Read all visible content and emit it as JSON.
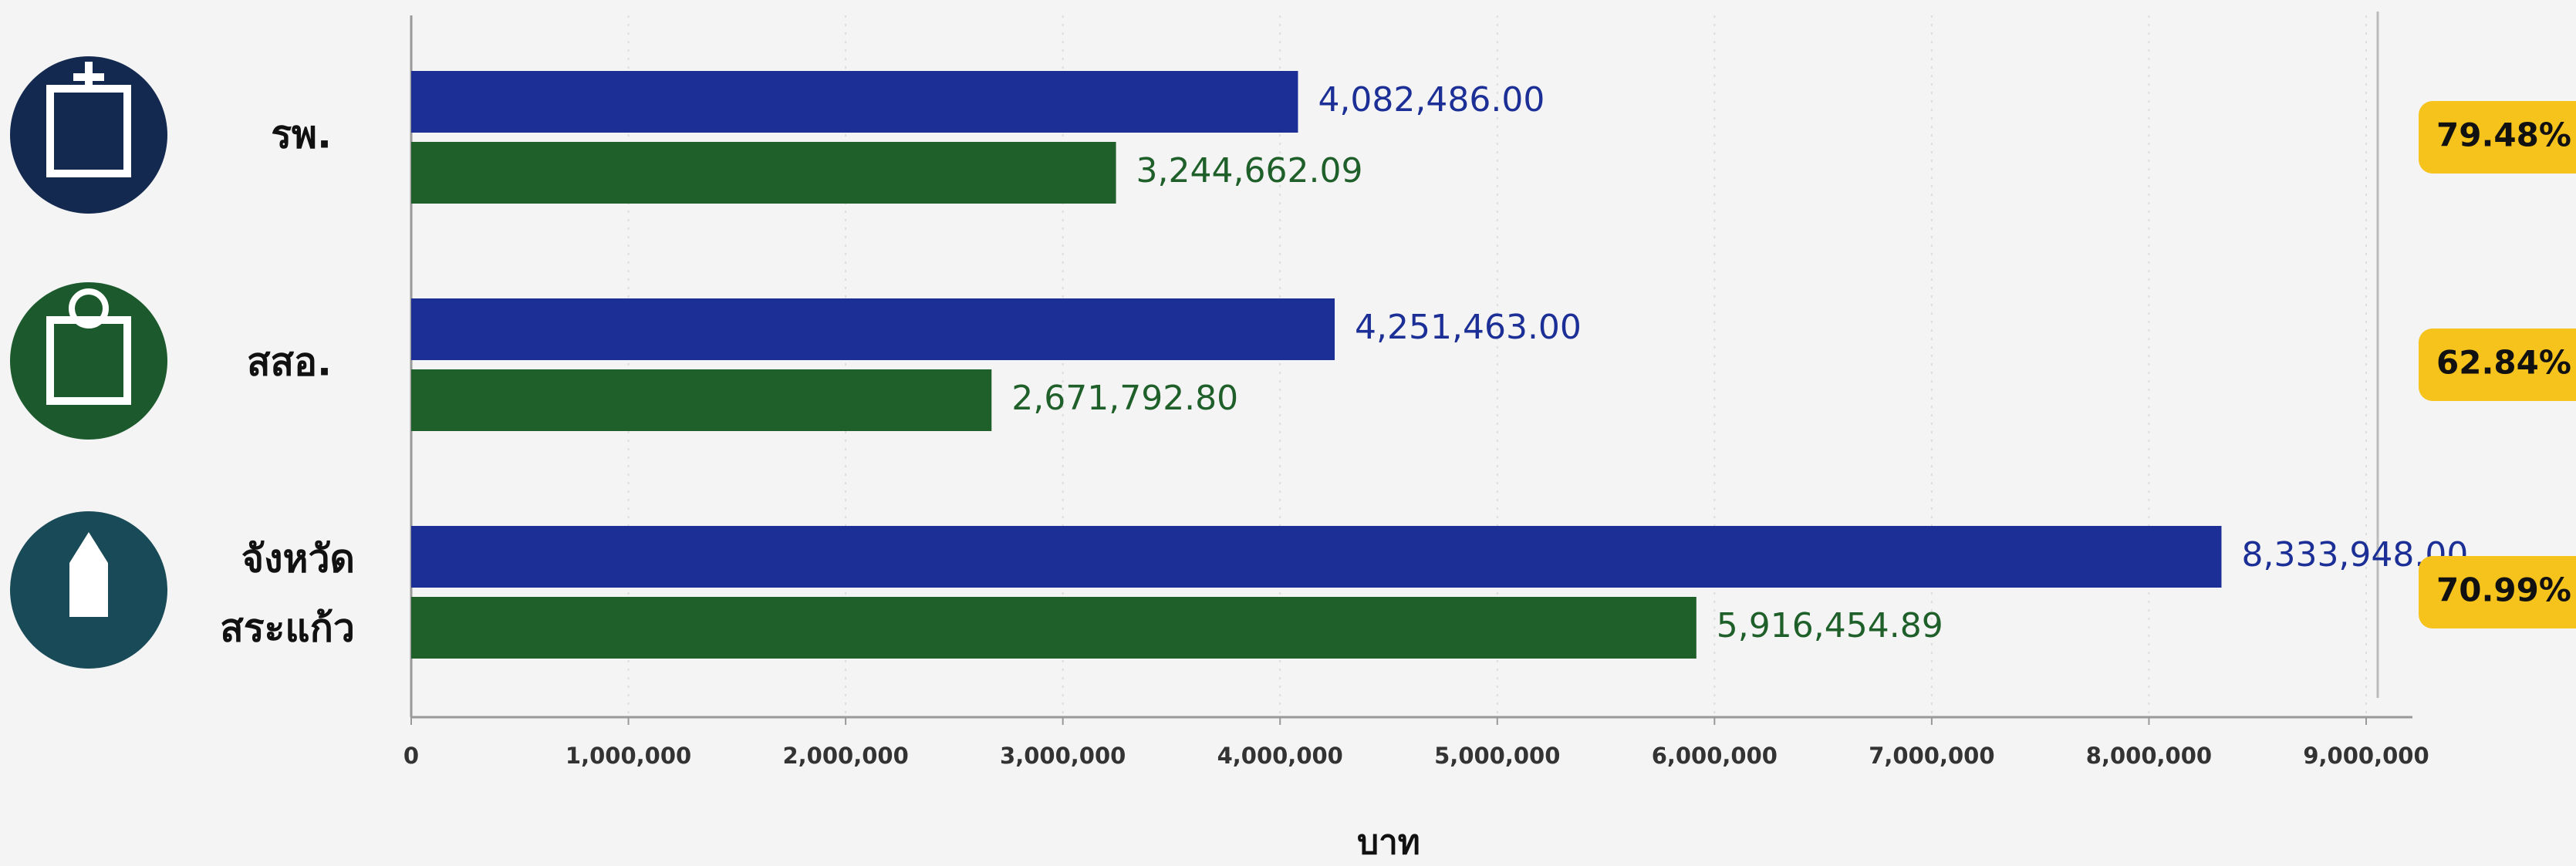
{
  "chart_data": {
    "type": "bar",
    "orientation": "horizontal",
    "categories": [
      "รพ.",
      "สสอ.",
      [
        "จังหวัด",
        "สระแก้ว"
      ]
    ],
    "series": [
      {
        "color": "#1b2f96",
        "values": [
          4082486,
          4251463,
          8333948
        ],
        "value_labels": [
          "4,082,486.00",
          "4,251,463.00",
          "8,333,948.00"
        ]
      },
      {
        "color": "#1f5f29",
        "values": [
          3244662.09,
          2671792.8,
          5916454.89
        ],
        "value_labels": [
          "3,244,662.09",
          "2,671,792.80",
          "5,916,454.89"
        ]
      }
    ],
    "percentages": {
      "color": "#f6c21c",
      "values": [
        79.48,
        62.84,
        70.99
      ],
      "value_labels": [
        "79.48%",
        "62.84%",
        "70.99%"
      ]
    },
    "x_label": "บาท",
    "xlim": [
      0,
      9000000
    ],
    "xticks": [
      0,
      {
        "value": 1000000,
        "label": "1,000,000"
      },
      {
        "value": 2000000,
        "label": "2,000,000"
      },
      {
        "value": 3000000,
        "label": "3,000,000"
      },
      {
        "value": 4000000,
        "label": "4,000,000"
      },
      {
        "value": 5000000,
        "label": "5,000,000"
      },
      {
        "value": 6000000,
        "label": "6,000,000"
      },
      {
        "value": 7000000,
        "label": "7,000,000"
      },
      {
        "value": 8000000,
        "label": "8,000,000"
      },
      {
        "value": 9000000,
        "label": "9,000,000"
      }
    ],
    "grid": true
  }
}
